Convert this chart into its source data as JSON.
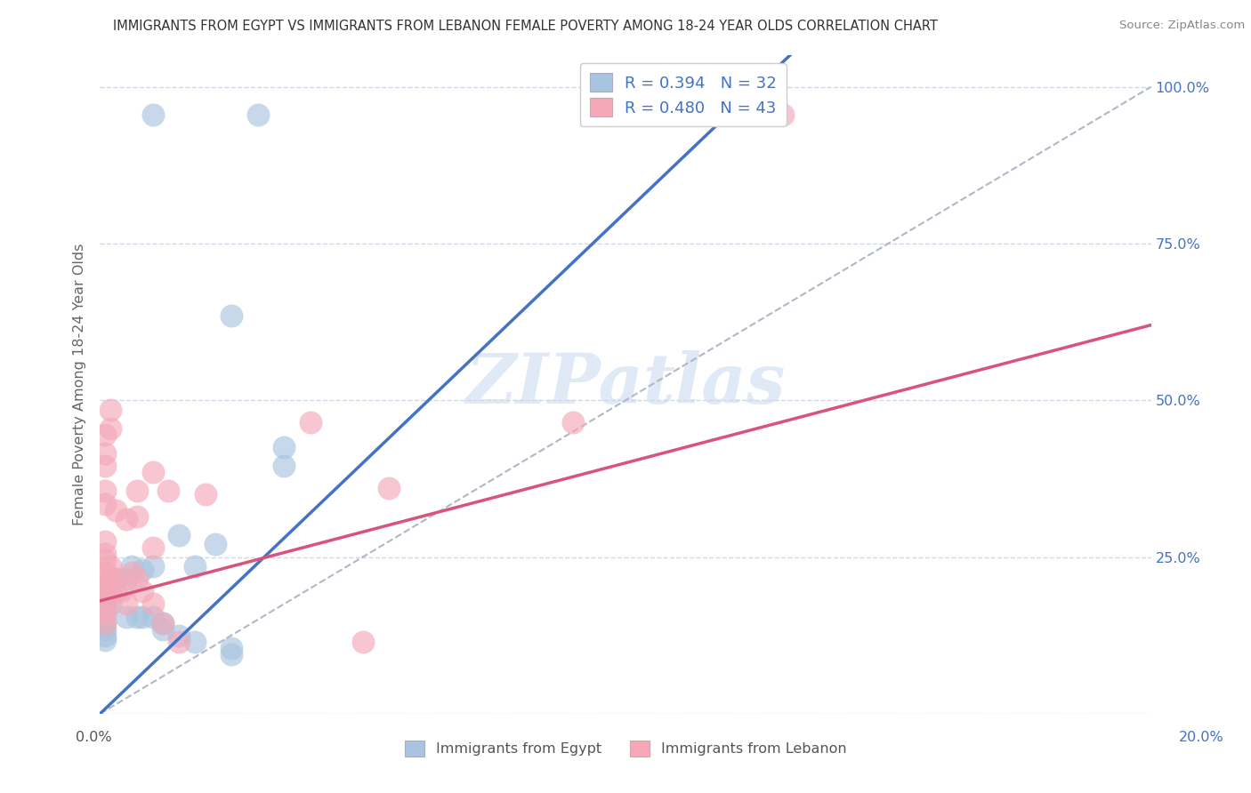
{
  "title": "IMMIGRANTS FROM EGYPT VS IMMIGRANTS FROM LEBANON FEMALE POVERTY AMONG 18-24 YEAR OLDS CORRELATION CHART",
  "source": "Source: ZipAtlas.com",
  "ylabel": "Female Poverty Among 18-24 Year Olds",
  "xlim": [
    0.0,
    0.2
  ],
  "ylim": [
    0.0,
    1.05
  ],
  "egypt_color": "#a8c4e0",
  "lebanon_color": "#f4a8b8",
  "egypt_line_color": "#4472c4",
  "lebanon_line_color": "#d9547a",
  "diag_color": "#b0b8c8",
  "egypt_R": "0.394",
  "egypt_N": "32",
  "lebanon_R": "0.480",
  "lebanon_N": "43",
  "legend_label_egypt": "Immigrants from Egypt",
  "legend_label_lebanon": "Immigrants from Lebanon",
  "egypt_line_x0": 0.0,
  "egypt_line_y0": 0.0,
  "egypt_line_x1": 0.075,
  "egypt_line_y1": 0.6,
  "lebanon_line_x0": 0.0,
  "lebanon_line_y0": 0.18,
  "lebanon_line_x1": 0.2,
  "lebanon_line_y1": 0.62,
  "egypt_points": [
    [
      0.01,
      0.955
    ],
    [
      0.03,
      0.955
    ],
    [
      0.025,
      0.635
    ],
    [
      0.035,
      0.425
    ],
    [
      0.035,
      0.395
    ],
    [
      0.022,
      0.27
    ],
    [
      0.018,
      0.235
    ],
    [
      0.015,
      0.285
    ],
    [
      0.01,
      0.235
    ],
    [
      0.008,
      0.23
    ],
    [
      0.006,
      0.235
    ],
    [
      0.005,
      0.215
    ],
    [
      0.003,
      0.215
    ],
    [
      0.002,
      0.195
    ],
    [
      0.002,
      0.175
    ],
    [
      0.001,
      0.195
    ],
    [
      0.001,
      0.175
    ],
    [
      0.001,
      0.158
    ],
    [
      0.001,
      0.145
    ],
    [
      0.001,
      0.135
    ],
    [
      0.001,
      0.125
    ],
    [
      0.001,
      0.118
    ],
    [
      0.005,
      0.155
    ],
    [
      0.007,
      0.155
    ],
    [
      0.008,
      0.155
    ],
    [
      0.01,
      0.155
    ],
    [
      0.012,
      0.145
    ],
    [
      0.012,
      0.135
    ],
    [
      0.015,
      0.125
    ],
    [
      0.018,
      0.115
    ],
    [
      0.025,
      0.105
    ],
    [
      0.025,
      0.095
    ]
  ],
  "lebanon_points": [
    [
      0.13,
      0.955
    ],
    [
      0.002,
      0.485
    ],
    [
      0.002,
      0.455
    ],
    [
      0.001,
      0.445
    ],
    [
      0.001,
      0.415
    ],
    [
      0.001,
      0.395
    ],
    [
      0.001,
      0.355
    ],
    [
      0.001,
      0.335
    ],
    [
      0.003,
      0.325
    ],
    [
      0.005,
      0.31
    ],
    [
      0.007,
      0.355
    ],
    [
      0.007,
      0.315
    ],
    [
      0.01,
      0.385
    ],
    [
      0.01,
      0.265
    ],
    [
      0.013,
      0.355
    ],
    [
      0.02,
      0.35
    ],
    [
      0.04,
      0.465
    ],
    [
      0.055,
      0.36
    ],
    [
      0.09,
      0.465
    ],
    [
      0.001,
      0.275
    ],
    [
      0.001,
      0.255
    ],
    [
      0.001,
      0.245
    ],
    [
      0.001,
      0.225
    ],
    [
      0.001,
      0.215
    ],
    [
      0.001,
      0.205
    ],
    [
      0.001,
      0.195
    ],
    [
      0.001,
      0.182
    ],
    [
      0.001,
      0.168
    ],
    [
      0.001,
      0.158
    ],
    [
      0.001,
      0.145
    ],
    [
      0.002,
      0.235
    ],
    [
      0.002,
      0.215
    ],
    [
      0.003,
      0.215
    ],
    [
      0.003,
      0.195
    ],
    [
      0.004,
      0.195
    ],
    [
      0.005,
      0.175
    ],
    [
      0.006,
      0.225
    ],
    [
      0.007,
      0.215
    ],
    [
      0.008,
      0.195
    ],
    [
      0.01,
      0.175
    ],
    [
      0.012,
      0.145
    ],
    [
      0.015,
      0.115
    ],
    [
      0.05,
      0.115
    ]
  ],
  "watermark_text": "ZIPatlas",
  "background_color": "#ffffff",
  "grid_color": "#d0d8e8"
}
